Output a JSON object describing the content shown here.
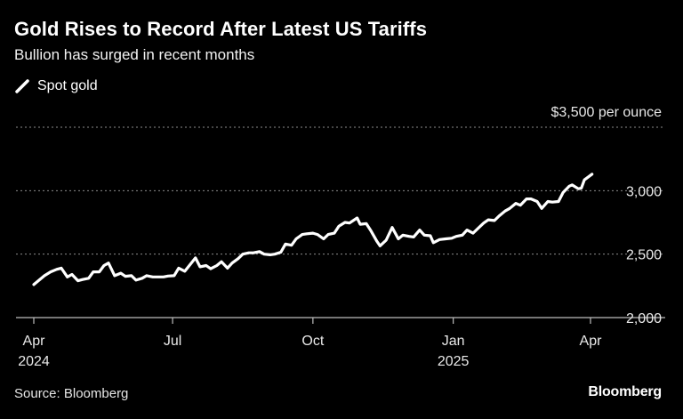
{
  "title": "Gold Rises to Record After Latest US Tariffs",
  "subtitle": "Bullion has surged in recent months",
  "legend": {
    "label": "Spot gold",
    "color": "#ffffff"
  },
  "source": "Source: Bloomberg",
  "brand": "Bloomberg",
  "colors": {
    "background": "#000000",
    "line": "#ffffff",
    "grid": "#8c8c8c"
  },
  "chart_data": {
    "type": "line",
    "title": "Gold Rises to Record After Latest US Tariffs",
    "subtitle": "Bullion has surged in recent months",
    "x_ticks": [
      {
        "date": "2024-04-01",
        "label": "Apr",
        "year": "2024"
      },
      {
        "date": "2024-07-01",
        "label": "Jul",
        "year": ""
      },
      {
        "date": "2024-10-01",
        "label": "Oct",
        "year": ""
      },
      {
        "date": "2025-01-01",
        "label": "Jan",
        "year": "2025"
      },
      {
        "date": "2025-04-01",
        "label": "Apr",
        "year": ""
      }
    ],
    "y_ticks": [
      {
        "value": 2000,
        "label": "2,000"
      },
      {
        "value": 2500,
        "label": "2,500"
      },
      {
        "value": 3000,
        "label": "3,000"
      },
      {
        "value": 3500,
        "label": "$3,500 per ounce"
      }
    ],
    "ylim": [
      2000,
      3500
    ],
    "xlim": [
      "2024-04-01",
      "2025-04-01"
    ],
    "grid": true,
    "grid_style": "dotted",
    "legend_position": "top-left",
    "series": [
      {
        "name": "Spot gold",
        "points": [
          [
            "2024-04-01",
            2260
          ],
          [
            "2024-04-04",
            2290
          ],
          [
            "2024-04-08",
            2330
          ],
          [
            "2024-04-12",
            2360
          ],
          [
            "2024-04-16",
            2380
          ],
          [
            "2024-04-19",
            2390
          ],
          [
            "2024-04-23",
            2320
          ],
          [
            "2024-04-26",
            2340
          ],
          [
            "2024-04-30",
            2290
          ],
          [
            "2024-05-03",
            2300
          ],
          [
            "2024-05-07",
            2310
          ],
          [
            "2024-05-10",
            2360
          ],
          [
            "2024-05-14",
            2360
          ],
          [
            "2024-05-17",
            2410
          ],
          [
            "2024-05-20",
            2430
          ],
          [
            "2024-05-24",
            2330
          ],
          [
            "2024-05-28",
            2350
          ],
          [
            "2024-05-31",
            2325
          ],
          [
            "2024-06-04",
            2330
          ],
          [
            "2024-06-07",
            2295
          ],
          [
            "2024-06-11",
            2310
          ],
          [
            "2024-06-14",
            2330
          ],
          [
            "2024-06-18",
            2320
          ],
          [
            "2024-06-21",
            2320
          ],
          [
            "2024-06-25",
            2320
          ],
          [
            "2024-06-28",
            2327
          ],
          [
            "2024-07-02",
            2330
          ],
          [
            "2024-07-05",
            2390
          ],
          [
            "2024-07-09",
            2365
          ],
          [
            "2024-07-12",
            2410
          ],
          [
            "2024-07-16",
            2470
          ],
          [
            "2024-07-19",
            2400
          ],
          [
            "2024-07-23",
            2410
          ],
          [
            "2024-07-26",
            2385
          ],
          [
            "2024-07-30",
            2410
          ],
          [
            "2024-08-02",
            2440
          ],
          [
            "2024-08-06",
            2390
          ],
          [
            "2024-08-09",
            2430
          ],
          [
            "2024-08-13",
            2465
          ],
          [
            "2024-08-16",
            2500
          ],
          [
            "2024-08-20",
            2510
          ],
          [
            "2024-08-23",
            2510
          ],
          [
            "2024-08-27",
            2520
          ],
          [
            "2024-08-30",
            2500
          ],
          [
            "2024-09-03",
            2495
          ],
          [
            "2024-09-06",
            2500
          ],
          [
            "2024-09-10",
            2515
          ],
          [
            "2024-09-13",
            2580
          ],
          [
            "2024-09-17",
            2570
          ],
          [
            "2024-09-20",
            2620
          ],
          [
            "2024-09-24",
            2655
          ],
          [
            "2024-09-27",
            2660
          ],
          [
            "2024-10-01",
            2665
          ],
          [
            "2024-10-04",
            2655
          ],
          [
            "2024-10-08",
            2620
          ],
          [
            "2024-10-11",
            2655
          ],
          [
            "2024-10-15",
            2665
          ],
          [
            "2024-10-18",
            2720
          ],
          [
            "2024-10-22",
            2750
          ],
          [
            "2024-10-25",
            2745
          ],
          [
            "2024-10-30",
            2785
          ],
          [
            "2024-11-01",
            2735
          ],
          [
            "2024-11-05",
            2740
          ],
          [
            "2024-11-08",
            2685
          ],
          [
            "2024-11-12",
            2600
          ],
          [
            "2024-11-14",
            2565
          ],
          [
            "2024-11-18",
            2610
          ],
          [
            "2024-11-22",
            2710
          ],
          [
            "2024-11-26",
            2620
          ],
          [
            "2024-11-29",
            2650
          ],
          [
            "2024-12-03",
            2640
          ],
          [
            "2024-12-06",
            2635
          ],
          [
            "2024-12-10",
            2690
          ],
          [
            "2024-12-13",
            2650
          ],
          [
            "2024-12-17",
            2645
          ],
          [
            "2024-12-19",
            2590
          ],
          [
            "2024-12-23",
            2615
          ],
          [
            "2024-12-27",
            2620
          ],
          [
            "2024-12-31",
            2625
          ],
          [
            "2025-01-03",
            2640
          ],
          [
            "2025-01-07",
            2650
          ],
          [
            "2025-01-10",
            2690
          ],
          [
            "2025-01-14",
            2665
          ],
          [
            "2025-01-17",
            2700
          ],
          [
            "2025-01-21",
            2745
          ],
          [
            "2025-01-24",
            2770
          ],
          [
            "2025-01-28",
            2765
          ],
          [
            "2025-01-31",
            2800
          ],
          [
            "2025-02-04",
            2840
          ],
          [
            "2025-02-07",
            2860
          ],
          [
            "2025-02-11",
            2900
          ],
          [
            "2025-02-14",
            2885
          ],
          [
            "2025-02-18",
            2935
          ],
          [
            "2025-02-21",
            2935
          ],
          [
            "2025-02-25",
            2915
          ],
          [
            "2025-02-28",
            2860
          ],
          [
            "2025-03-04",
            2915
          ],
          [
            "2025-03-07",
            2910
          ],
          [
            "2025-03-11",
            2915
          ],
          [
            "2025-03-14",
            2985
          ],
          [
            "2025-03-18",
            3035
          ],
          [
            "2025-03-20",
            3045
          ],
          [
            "2025-03-24",
            3015
          ],
          [
            "2025-03-26",
            3020
          ],
          [
            "2025-03-28",
            3085
          ],
          [
            "2025-04-02",
            3130
          ]
        ]
      }
    ]
  }
}
